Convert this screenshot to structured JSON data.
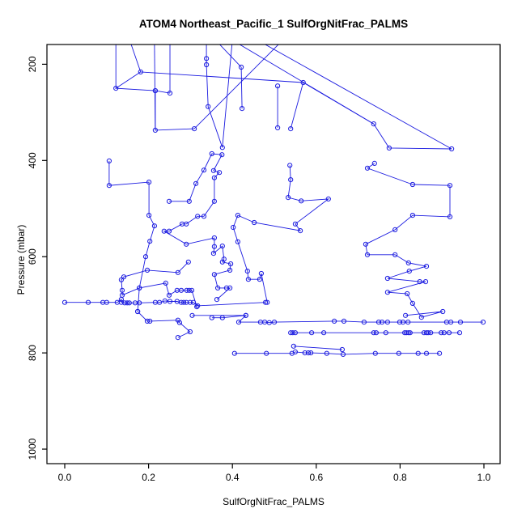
{
  "title": "ATOM4 Northeast_Pacific_1 SulfOrgNitFrac_PALMS",
  "colors": {
    "series": "#1a1ae0",
    "axis": "#000000",
    "background": "#ffffff"
  },
  "chart_data": {
    "type": "line",
    "title": "ATOM4 Northeast_Pacific_1 SulfOrgNitFrac_PALMS",
    "xlabel": "SulfOrgNitFrac_PALMS",
    "ylabel": "Pressure (mbar)",
    "x_ticks": [
      0.0,
      0.2,
      0.4,
      0.6,
      0.8,
      1.0
    ],
    "y_ticks": [
      200,
      400,
      600,
      800,
      1000
    ],
    "xlim": [
      -0.042,
      1.038
    ],
    "ylim_reversed": [
      1035,
      155
    ],
    "grid": false,
    "legend": "none",
    "marker": "open-circle",
    "series": [
      {
        "name": "band-695mbar",
        "points": [
          [
            0.0,
            695
          ],
          [
            0.056,
            695
          ],
          [
            0.091,
            695
          ],
          [
            0.1,
            695
          ],
          [
            0.125,
            695
          ],
          [
            0.135,
            689
          ],
          [
            0.135,
            695
          ],
          [
            0.143,
            696
          ],
          [
            0.149,
            696
          ],
          [
            0.154,
            696
          ],
          [
            0.168,
            696
          ],
          [
            0.178,
            696
          ],
          [
            0.216,
            695
          ],
          [
            0.226,
            695
          ],
          [
            0.239,
            692
          ],
          [
            0.251,
            693
          ],
          [
            0.268,
            693
          ],
          [
            0.278,
            695
          ],
          [
            0.284,
            695
          ],
          [
            0.29,
            695
          ],
          [
            0.299,
            695
          ],
          [
            0.307,
            695
          ],
          [
            0.317,
            702
          ],
          [
            0.479,
            695
          ]
        ]
      },
      {
        "name": "band-736mbar",
        "points": [
          [
            0.351,
            727
          ],
          [
            0.376,
            727
          ],
          [
            0.432,
            722
          ],
          [
            0.415,
            736
          ],
          [
            0.467,
            736
          ],
          [
            0.477,
            736
          ],
          [
            0.488,
            737
          ],
          [
            0.5,
            736
          ],
          [
            0.643,
            734
          ],
          [
            0.666,
            734
          ],
          [
            0.714,
            736
          ],
          [
            0.749,
            736
          ],
          [
            0.757,
            736
          ],
          [
            0.77,
            736
          ],
          [
            0.799,
            736
          ],
          [
            0.807,
            736
          ],
          [
            0.819,
            736
          ],
          [
            0.911,
            736
          ],
          [
            0.921,
            736
          ],
          [
            0.944,
            736
          ],
          [
            0.998,
            736
          ]
        ]
      },
      {
        "name": "band-758mbar",
        "points": [
          [
            0.539,
            758
          ],
          [
            0.544,
            758
          ],
          [
            0.55,
            758
          ],
          [
            0.589,
            758
          ],
          [
            0.618,
            758
          ],
          [
            0.737,
            758
          ],
          [
            0.743,
            758
          ],
          [
            0.766,
            758
          ],
          [
            0.811,
            758
          ],
          [
            0.815,
            758
          ],
          [
            0.82,
            758
          ],
          [
            0.824,
            758
          ],
          [
            0.857,
            758
          ],
          [
            0.863,
            758
          ],
          [
            0.867,
            758
          ],
          [
            0.873,
            758
          ],
          [
            0.898,
            758
          ],
          [
            0.905,
            758
          ],
          [
            0.917,
            758
          ],
          [
            0.942,
            758
          ]
        ]
      },
      {
        "name": "band-801mbar",
        "points": [
          [
            0.405,
            801
          ],
          [
            0.481,
            801
          ],
          [
            0.542,
            801
          ],
          [
            0.55,
            798
          ],
          [
            0.573,
            800
          ],
          [
            0.581,
            800
          ],
          [
            0.587,
            800
          ],
          [
            0.625,
            801
          ],
          [
            0.664,
            803
          ],
          [
            0.741,
            801
          ],
          [
            0.797,
            801
          ],
          [
            0.843,
            801
          ],
          [
            0.863,
            801
          ],
          [
            0.894,
            801
          ]
        ]
      },
      {
        "name": "diag-786mbar",
        "points": [
          [
            0.546,
            786
          ],
          [
            0.662,
            793
          ]
        ]
      },
      {
        "name": "profile-left",
        "points": [
          [
            0.106,
            401
          ],
          [
            0.106,
            452
          ],
          [
            0.201,
            445
          ],
          [
            0.201,
            514
          ],
          [
            0.214,
            536
          ],
          [
            0.203,
            568
          ],
          [
            0.193,
            600
          ],
          [
            0.178,
            665
          ],
          [
            0.174,
            714
          ]
        ]
      },
      {
        "name": "scribble-left-mid",
        "points": [
          [
            0.249,
            485
          ],
          [
            0.297,
            485
          ],
          [
            0.313,
            448
          ],
          [
            0.332,
            420
          ],
          [
            0.351,
            386
          ],
          [
            0.375,
            388
          ],
          [
            0.355,
            421
          ],
          [
            0.369,
            425
          ],
          [
            0.357,
            436
          ],
          [
            0.357,
            485
          ],
          [
            0.332,
            516
          ],
          [
            0.317,
            516
          ],
          [
            0.29,
            532
          ],
          [
            0.28,
            532
          ],
          [
            0.249,
            547
          ],
          [
            0.237,
            547
          ],
          [
            0.29,
            574
          ],
          [
            0.357,
            561
          ],
          [
            0.357,
            579
          ],
          [
            0.355,
            593
          ],
          [
            0.376,
            578
          ],
          [
            0.38,
            605
          ],
          [
            0.376,
            611
          ],
          [
            0.396,
            615
          ],
          [
            0.394,
            628
          ],
          [
            0.357,
            637
          ],
          [
            0.365,
            665
          ],
          [
            0.386,
            665
          ],
          [
            0.394,
            665
          ],
          [
            0.363,
            689
          ]
        ]
      },
      {
        "name": "cluster-650mbar",
        "points": [
          [
            0.295,
            611
          ],
          [
            0.27,
            633
          ],
          [
            0.197,
            628
          ],
          [
            0.141,
            642
          ],
          [
            0.135,
            648
          ],
          [
            0.137,
            670
          ],
          [
            0.137,
            680
          ],
          [
            0.178,
            665
          ],
          [
            0.241,
            655
          ],
          [
            0.249,
            680
          ],
          [
            0.268,
            670
          ],
          [
            0.278,
            670
          ],
          [
            0.291,
            670
          ],
          [
            0.297,
            670
          ],
          [
            0.303,
            670
          ],
          [
            0.315,
            704
          ]
        ]
      },
      {
        "name": "hooks-lower-left",
        "points": [
          [
            0.174,
            714
          ],
          [
            0.197,
            734
          ],
          [
            0.203,
            734
          ],
          [
            0.27,
            732
          ],
          [
            0.274,
            737
          ],
          [
            0.299,
            756
          ],
          [
            0.27,
            768
          ]
        ]
      },
      {
        "name": "link-722mbar",
        "points": [
          [
            0.304,
            722
          ],
          [
            0.432,
            722
          ]
        ]
      },
      {
        "name": "profile-mid",
        "points": [
          [
            0.537,
            410
          ],
          [
            0.539,
            440
          ],
          [
            0.533,
            477
          ],
          [
            0.564,
            484
          ],
          [
            0.629,
            480
          ],
          [
            0.55,
            532
          ],
          [
            0.562,
            546
          ],
          [
            0.452,
            529
          ],
          [
            0.413,
            514
          ],
          [
            0.402,
            539
          ],
          [
            0.413,
            569
          ],
          [
            0.436,
            630
          ],
          [
            0.438,
            647
          ],
          [
            0.465,
            647
          ],
          [
            0.469,
            635
          ],
          [
            0.483,
            695
          ]
        ]
      },
      {
        "name": "profile-right",
        "points": [
          [
            0.739,
            406
          ],
          [
            0.722,
            416
          ],
          [
            0.83,
            450
          ],
          [
            0.919,
            452
          ],
          [
            0.919,
            517
          ],
          [
            0.83,
            514
          ],
          [
            0.788,
            544
          ],
          [
            0.718,
            574
          ],
          [
            0.722,
            596
          ],
          [
            0.788,
            596
          ],
          [
            0.82,
            613
          ],
          [
            0.863,
            620
          ],
          [
            0.822,
            630
          ],
          [
            0.77,
            645
          ],
          [
            0.847,
            652
          ],
          [
            0.861,
            652
          ],
          [
            0.77,
            674
          ],
          [
            0.817,
            677
          ],
          [
            0.83,
            697
          ],
          [
            0.851,
            726
          ],
          [
            0.902,
            714
          ],
          [
            0.813,
            722
          ]
        ]
      },
      {
        "name": "top-vertical-x034",
        "points": [
          [
            0.338,
            188
          ],
          [
            0.338,
            201
          ],
          [
            0.342,
            288
          ],
          [
            0.376,
            373
          ]
        ]
      },
      {
        "name": "top-vertical-x042",
        "points": [
          [
            0.421,
            206
          ],
          [
            0.423,
            292
          ]
        ]
      },
      {
        "name": "top-vertical-x051",
        "points": [
          [
            0.508,
            245
          ],
          [
            0.508,
            332
          ]
        ]
      },
      {
        "name": "top-slant-x056",
        "points": [
          [
            0.569,
            238
          ],
          [
            0.539,
            334
          ]
        ]
      },
      {
        "name": "top-cluster-left",
        "points": [
          [
            0.181,
            216
          ],
          [
            0.122,
            250
          ],
          [
            0.216,
            255
          ],
          [
            0.251,
            260
          ]
        ]
      },
      {
        "name": "top-vertical-x022",
        "points": [
          [
            0.216,
            255
          ],
          [
            0.216,
            337
          ],
          [
            0.309,
            334
          ]
        ]
      },
      {
        "name": "top-right-hook",
        "points": [
          [
            0.737,
            324
          ],
          [
            0.774,
            374
          ],
          [
            0.923,
            376
          ]
        ]
      }
    ],
    "segments_no_marker": [
      [
        [
          0.155,
          150
        ],
        [
          0.181,
          216
        ]
      ],
      [
        [
          0.122,
          150
        ],
        [
          0.122,
          250
        ]
      ],
      [
        [
          0.214,
          150
        ],
        [
          0.216,
          337
        ]
      ],
      [
        [
          0.251,
          150
        ],
        [
          0.251,
          260
        ]
      ],
      [
        [
          0.36,
          150
        ],
        [
          0.421,
          206
        ]
      ],
      [
        [
          0.338,
          150
        ],
        [
          0.338,
          188
        ]
      ],
      [
        [
          0.4,
          150
        ],
        [
          0.737,
          324
        ]
      ],
      [
        [
          0.46,
          150
        ],
        [
          0.923,
          376
        ]
      ],
      [
        [
          0.52,
          150
        ],
        [
          0.309,
          334
        ]
      ],
      [
        [
          0.4,
          150
        ],
        [
          0.376,
          373
        ]
      ],
      [
        [
          0.181,
          216
        ],
        [
          0.569,
          238
        ]
      ],
      [
        [
          0.569,
          238
        ],
        [
          0.737,
          324
        ]
      ]
    ]
  },
  "axes_text": {
    "x_tick_labels": [
      "0.0",
      "0.2",
      "0.4",
      "0.6",
      "0.8",
      "1.0"
    ],
    "y_tick_labels": [
      "200",
      "400",
      "600",
      "800",
      "1000"
    ],
    "xlabel": "SulfOrgNitFrac_PALMS",
    "ylabel": "Pressure (mbar)"
  }
}
